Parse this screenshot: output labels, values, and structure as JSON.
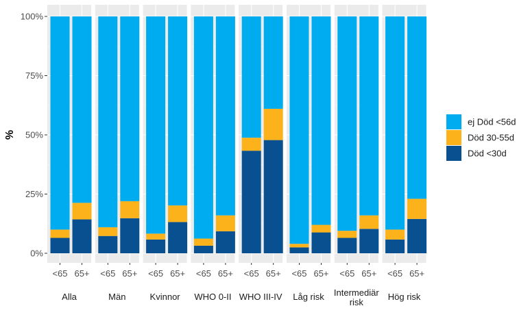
{
  "chart_data": {
    "type": "bar",
    "stacked": true,
    "ylabel": "%",
    "xlabel": "",
    "ylim": [
      0,
      100
    ],
    "yticks": [
      "0%",
      "25%",
      "50%",
      "75%",
      "100%"
    ],
    "categories": [
      "<65",
      "65+"
    ],
    "facets": [
      {
        "label": [
          "Alla"
        ],
        "segments": [
          [
            6.5,
            3.5,
            90.0
          ],
          [
            14.3,
            7.0,
            78.7
          ]
        ]
      },
      {
        "label": [
          "Män"
        ],
        "segments": [
          [
            7.3,
            3.7,
            89.0
          ],
          [
            14.8,
            7.2,
            78.0
          ]
        ]
      },
      {
        "label": [
          "Kvinnor"
        ],
        "segments": [
          [
            5.8,
            2.5,
            91.7
          ],
          [
            13.2,
            7.0,
            79.8
          ]
        ]
      },
      {
        "label": [
          "WHO 0-II"
        ],
        "segments": [
          [
            3.2,
            3.0,
            93.8
          ],
          [
            9.3,
            6.7,
            84.0
          ]
        ]
      },
      {
        "label": [
          "WHO III-IV"
        ],
        "segments": [
          [
            43.3,
            5.5,
            51.2
          ],
          [
            47.8,
            13.2,
            39.0
          ]
        ]
      },
      {
        "label": [
          "Låg risk"
        ],
        "segments": [
          [
            2.5,
            1.5,
            96.0
          ],
          [
            8.8,
            3.2,
            88.0
          ]
        ]
      },
      {
        "label": [
          "Intermediär",
          "risk"
        ],
        "segments": [
          [
            6.5,
            3.0,
            90.5
          ],
          [
            10.3,
            5.7,
            84.0
          ]
        ]
      },
      {
        "label": [
          "Hög risk"
        ],
        "segments": [
          [
            5.8,
            4.2,
            90.0
          ],
          [
            14.5,
            8.5,
            77.0
          ]
        ]
      }
    ],
    "series": [
      {
        "name": "Död <30d",
        "color": "#08508F"
      },
      {
        "name": "Död 30-55d",
        "color": "#FCB31B"
      },
      {
        "name": "ej Död <56d",
        "color": "#00ACF0"
      }
    ],
    "legend_order": [
      "ej Död <56d",
      "Död 30-55d",
      "Död <30d"
    ],
    "legend_position": "right",
    "grid": true,
    "panel_background": "#EBEBEB"
  }
}
